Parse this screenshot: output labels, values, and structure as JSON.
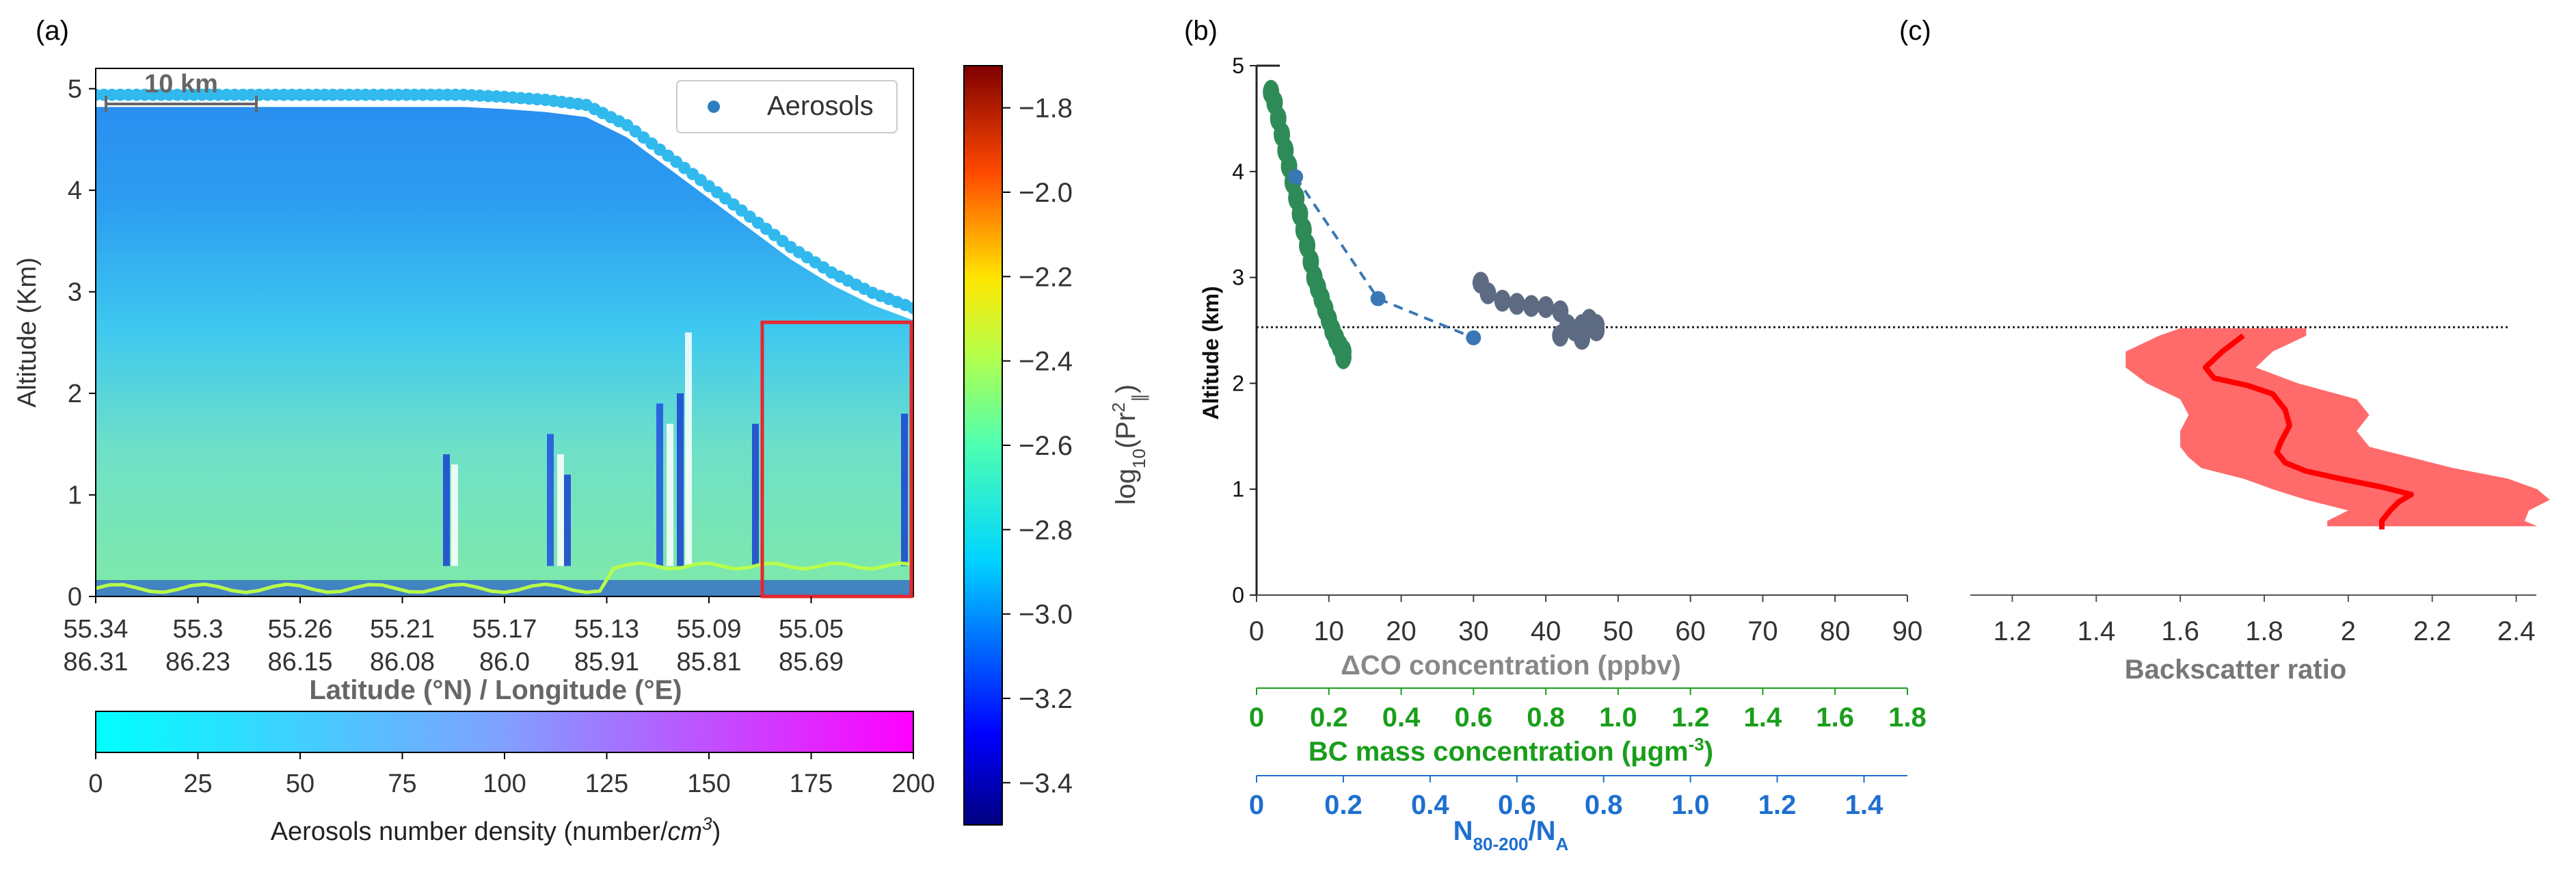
{
  "colors": {
    "cyan": "#00ffff",
    "magenta": "#ff00ff",
    "aerosol_points": "#31b9ee",
    "green": "#2e8b57",
    "blue_dashed": "#3a78b5",
    "grey": "#5d6b82",
    "red_line": "#ff0000",
    "red_band": "#ff5a5a",
    "red_box": "#e8262d",
    "bc_axis": "#1a9e1a",
    "n_axis": "#1e6fcf",
    "co_axis": "#888888",
    "dark_axis": "#555555"
  },
  "chart_data": [
    {
      "type": "heatmap",
      "panel_label": "(a)",
      "scale_bar_label": "10 km",
      "legend": {
        "entries": [
          "Aerosols"
        ],
        "position": "top-right"
      },
      "ylabel": "Altitude (Km)",
      "ylim": [
        0,
        5.2
      ],
      "yticks": [
        "0",
        "1",
        "2",
        "3",
        "4",
        "5"
      ],
      "xlabel": "Latitude (°N) / Longitude (°E)",
      "xtick_lat": [
        "55.34",
        "55.3",
        "55.26",
        "55.21",
        "55.17",
        "55.13",
        "55.09",
        "55.05"
      ],
      "xtick_lon": [
        "86.31",
        "86.23",
        "86.15",
        "86.08",
        "86.0",
        "85.91",
        "85.81",
        "85.69"
      ],
      "colorbar": {
        "label_log": "log",
        "label_sub": "10",
        "label_var": "(Pr",
        "label_sup": "2",
        "label_sub2": "∥",
        "label_close": ")",
        "range": [
          -3.5,
          -1.7
        ],
        "ticks": [
          "−1.8",
          "−2.0",
          "−2.2",
          "−2.4",
          "−2.6",
          "−2.8",
          "−3.0",
          "−3.2",
          "−3.4"
        ]
      },
      "aerosol_colorbar": {
        "label": "Aerosols number density (number/cm³)",
        "label_main": "Aerosols number density (number/",
        "label_unit": "cm",
        "label_sup": "3",
        "label_close": ")",
        "range": [
          0,
          200
        ],
        "ticks": [
          "0",
          "25",
          "50",
          "75",
          "100",
          "125",
          "150",
          "175",
          "200"
        ]
      },
      "aerosol_layer_top_km": [
        4.9,
        4.9,
        4.9,
        4.9,
        4.9,
        4.9,
        4.9,
        4.9,
        4.9,
        4.9,
        4.88,
        4.85,
        4.8,
        4.6,
        4.3,
        4.0,
        3.7,
        3.4,
        3.15,
        2.95,
        2.8
      ],
      "highlight_box_km": [
        0.0,
        2.7
      ]
    },
    {
      "type": "scatter",
      "panel_label": "(b)",
      "ylabel": "Altitude (km)",
      "ylim": [
        0,
        5
      ],
      "yticks": [
        "0",
        "1",
        "2",
        "3",
        "4",
        "5"
      ],
      "reference_line_km": 2.53,
      "x_axes": [
        {
          "label": "ΔCO concentration (ppbv)",
          "range": [
            0,
            90
          ],
          "ticks": [
            "0",
            "10",
            "20",
            "30",
            "40",
            "50",
            "60",
            "70",
            "80",
            "90"
          ]
        },
        {
          "label": "BC mass concentration (μgm⁻³)",
          "label_main": "BC mass concentration (μgm",
          "label_sup": "-3",
          "label_close": ")",
          "range": [
            0,
            1.8
          ],
          "ticks": [
            "0",
            "0.2",
            "0.4",
            "0.6",
            "0.8",
            "1.0",
            "1.2",
            "1.4",
            "1.6",
            "1.8"
          ]
        },
        {
          "label": "N80-200/NA",
          "label_main": "N",
          "label_sub": "80-200",
          "label_slash": "/N",
          "label_sub2": "A",
          "range": [
            0,
            1.5
          ],
          "ticks": [
            "0",
            "0.2",
            "0.4",
            "0.6",
            "0.8",
            "1.0",
            "1.2",
            "1.4"
          ]
        }
      ],
      "series": [
        {
          "color": "green",
          "axis": "BC mass concentration",
          "x": [
            0.04,
            0.05,
            0.06,
            0.07,
            0.08,
            0.09,
            0.1,
            0.11,
            0.12,
            0.13,
            0.14,
            0.15,
            0.16,
            0.17,
            0.18,
            0.19,
            0.2,
            0.21,
            0.22,
            0.23,
            0.24,
            0.24
          ],
          "y": [
            4.75,
            4.65,
            4.5,
            4.35,
            4.2,
            4.05,
            3.9,
            3.75,
            3.6,
            3.45,
            3.3,
            3.15,
            3.0,
            2.9,
            2.8,
            2.7,
            2.6,
            2.5,
            2.42,
            2.35,
            2.3,
            2.25
          ]
        },
        {
          "color": "blue_dashed",
          "axis": "N80-200/NA",
          "x": [
            0.09,
            0.28,
            0.5
          ],
          "y": [
            3.95,
            2.8,
            2.43
          ]
        },
        {
          "color": "grey",
          "axis": "ΔCO concentration",
          "x": [
            31,
            32,
            34,
            36,
            38,
            40,
            42,
            43,
            44,
            45,
            46,
            47,
            42,
            45,
            47
          ],
          "y": [
            2.95,
            2.85,
            2.78,
            2.75,
            2.73,
            2.72,
            2.68,
            2.55,
            2.5,
            2.55,
            2.6,
            2.5,
            2.45,
            2.42,
            2.55
          ]
        }
      ]
    },
    {
      "type": "line",
      "panel_label": "(c)",
      "xlabel": "Backscatter ratio",
      "xlim": [
        1.1,
        2.5
      ],
      "xticks": [
        "1.2",
        "1.4",
        "1.6",
        "1.8",
        "2",
        "2.2",
        "2.4"
      ],
      "ylim": [
        0,
        5
      ],
      "series": [
        {
          "type": "line",
          "x": [
            1.75,
            1.7,
            1.66,
            1.68,
            1.76,
            1.82,
            1.85,
            1.86,
            1.84,
            1.83,
            1.85,
            1.9,
            1.98,
            2.08,
            2.15,
            2.12,
            2.1,
            2.08,
            2.08
          ],
          "y": [
            2.45,
            2.3,
            2.15,
            2.05,
            1.98,
            1.9,
            1.75,
            1.6,
            1.45,
            1.35,
            1.25,
            1.17,
            1.1,
            1.02,
            0.95,
            0.88,
            0.8,
            0.7,
            0.62
          ]
        },
        {
          "type": "area",
          "y": [
            2.52,
            2.45,
            2.3,
            2.15,
            2.0,
            1.85,
            1.7,
            1.55,
            1.4,
            1.3,
            1.2,
            1.1,
            1.0,
            0.9,
            0.8,
            0.7,
            0.65
          ],
          "low": [
            1.6,
            1.55,
            1.47,
            1.47,
            1.52,
            1.6,
            1.62,
            1.6,
            1.6,
            1.62,
            1.65,
            1.75,
            1.82,
            1.9,
            2.0,
            1.95,
            1.95
          ],
          "high": [
            1.9,
            1.9,
            1.82,
            1.78,
            1.88,
            2.02,
            2.05,
            2.02,
            2.05,
            2.15,
            2.25,
            2.38,
            2.45,
            2.48,
            2.43,
            2.42,
            2.45
          ]
        }
      ]
    }
  ]
}
